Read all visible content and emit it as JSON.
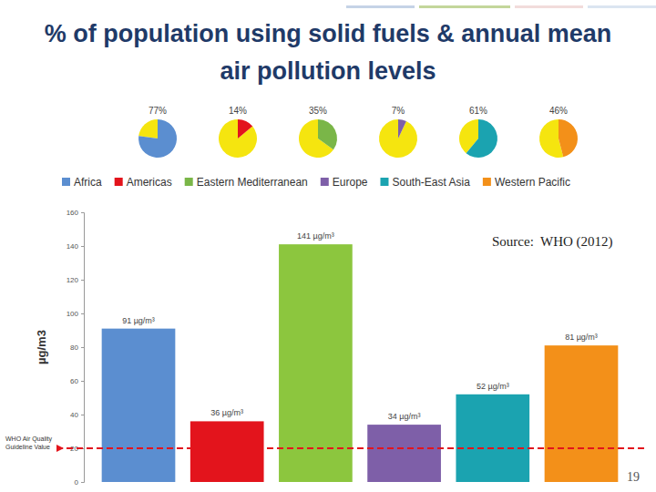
{
  "page": 19,
  "chart_data": [
    {
      "type": "pie",
      "title": "% of population using solid fuels & annual mean air pollution levels",
      "categories": [
        "Africa",
        "Americas",
        "Eastern Mediterranean",
        "Europe",
        "South-East Asia",
        "Western Pacific"
      ],
      "values": [
        77,
        14,
        35,
        7,
        61,
        46
      ],
      "value_labels": [
        "77%",
        "14%",
        "35%",
        "7%",
        "61%",
        "46%"
      ],
      "colors": [
        "#5b8ed0",
        "#e3141c",
        "#7ab648",
        "#7e5fa8",
        "#1ba3b0",
        "#f39019"
      ],
      "data_labels": true,
      "legend": "top"
    },
    {
      "type": "bar",
      "categories": [
        "Africa",
        "Americas",
        "Eastern Mediterranean",
        "Europe",
        "South-East Asia",
        "Western Pacific"
      ],
      "values": [
        91,
        36,
        141,
        34,
        52,
        81
      ],
      "value_labels": [
        "91 µg/m³",
        "36 µg/m³",
        "141 µg/m³",
        "34 µg/m³",
        "52 µg/m³",
        "81 µg/m³"
      ],
      "colors": [
        "#5b8ed0",
        "#e3141c",
        "#8cc63e",
        "#7e5fa8",
        "#1ba3b0",
        "#f39019"
      ],
      "data_labels": true,
      "ylabel": "µg/m3",
      "ylim": [
        0,
        160
      ],
      "yticks": [
        0,
        20,
        40,
        60,
        80,
        100,
        120,
        140,
        160
      ],
      "tick_labels": "y",
      "guideline": {
        "value": 20,
        "label": "WHO Air Quality Guideline Value"
      },
      "annotations": [
        "Source:  WHO (2012)"
      ]
    }
  ]
}
